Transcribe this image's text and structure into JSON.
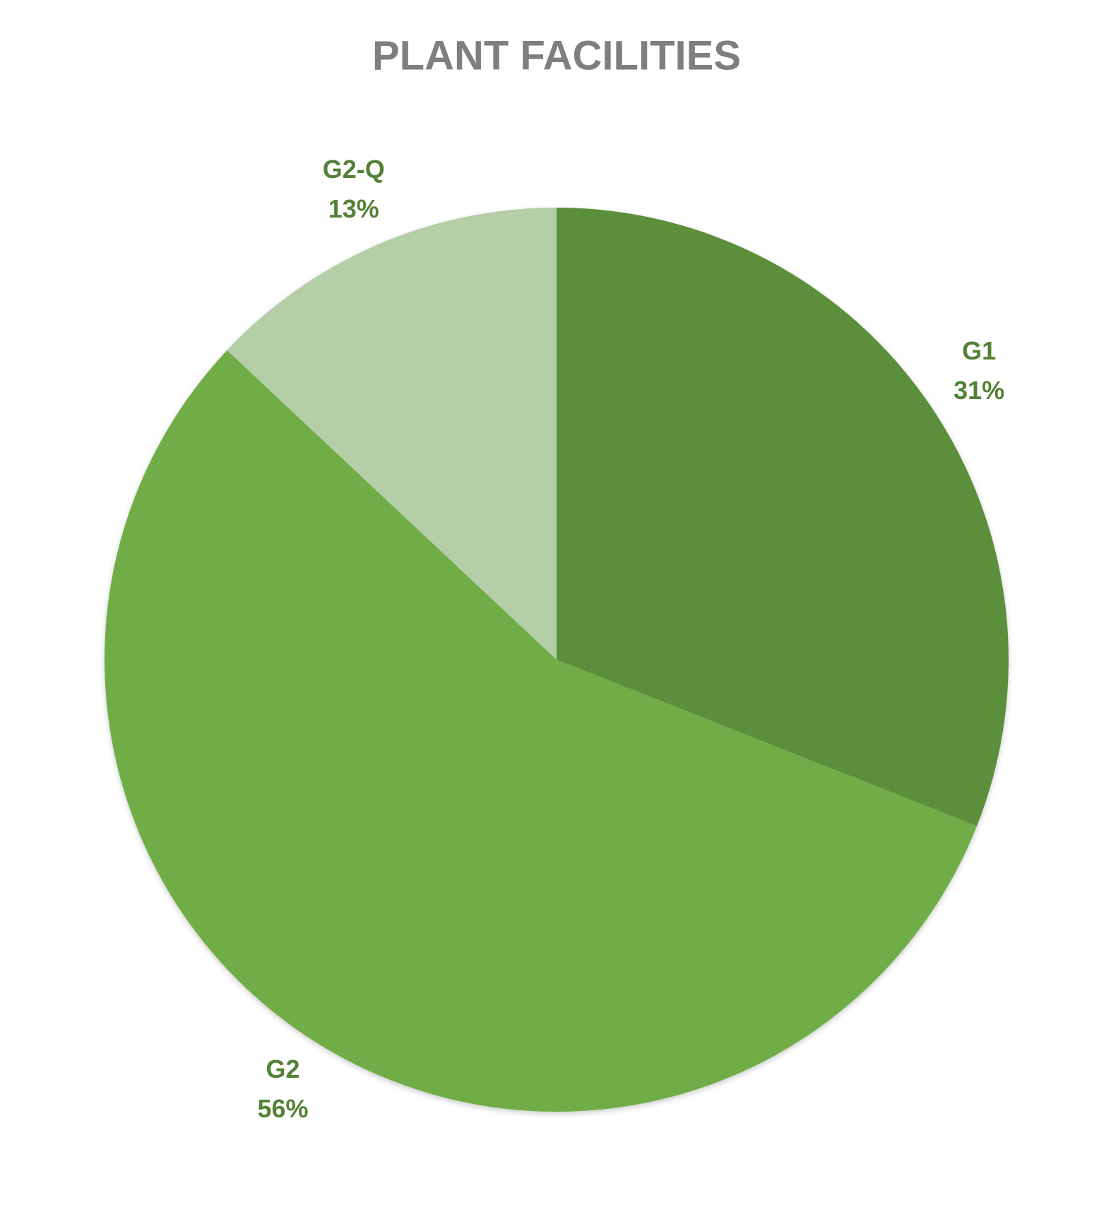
{
  "chart_data": {
    "type": "pie",
    "title": "PLANT FACILITIES",
    "categories": [
      "G1",
      "G2",
      "G2-Q"
    ],
    "values": [
      31,
      56,
      13
    ],
    "value_labels": [
      "31%",
      "56%",
      "13%"
    ],
    "colors": [
      "#5b8f3a",
      "#70ad47",
      "#b4cea7"
    ]
  }
}
